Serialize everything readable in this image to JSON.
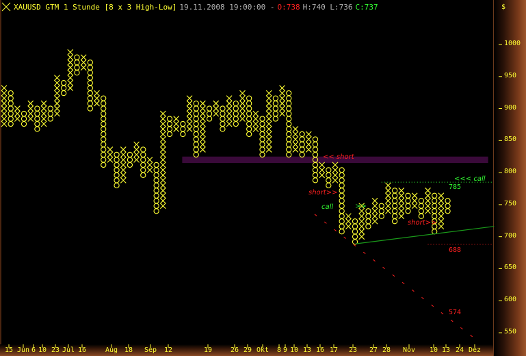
{
  "header": {
    "symbol_title": "XAUUSD GTM 1 Stunde [8 x 3 High-Low]",
    "datetime": "19.11.2008 19:00:00 -",
    "open": "O:738",
    "high_low": "H:740 L:736",
    "close": "C:737",
    "currency": "$",
    "icon": "cross-icon"
  },
  "colors": {
    "boxes": "#ffff33",
    "band": "#3a0a3a",
    "call": "#33ff33",
    "short": "#ff2020",
    "trendline": "#1a9a1a",
    "axis_text": "#ffff33"
  },
  "chart_data": {
    "type": "point-and-figure",
    "box_size": 8,
    "reversal": 3,
    "method": "High-Low",
    "grid": false,
    "ylim": [
      540,
      1010
    ],
    "y_ticks": [
      "1000",
      "950",
      "900",
      "850",
      "800",
      "750",
      "700",
      "650",
      "600",
      "550"
    ],
    "x_ticks": [
      "15",
      "Jun",
      "6",
      "10",
      "23",
      "Jul",
      "16",
      "Aug",
      "18",
      "Sep",
      "12",
      "19",
      "26",
      "29",
      "Okt",
      "8",
      "9",
      "10",
      "13",
      "16",
      "17",
      "23",
      "27",
      "28",
      "Nov",
      "10",
      "13",
      "24",
      "Dez"
    ],
    "columns": [
      {
        "t": "X",
        "low": 876,
        "high": 932
      },
      {
        "t": "O",
        "low": 876,
        "high": 924
      },
      {
        "t": "X",
        "low": 884,
        "high": 900
      },
      {
        "t": "O",
        "low": 876,
        "high": 892
      },
      {
        "t": "X",
        "low": 884,
        "high": 908
      },
      {
        "t": "O",
        "low": 868,
        "high": 900
      },
      {
        "t": "X",
        "low": 876,
        "high": 908
      },
      {
        "t": "O",
        "low": 884,
        "high": 900
      },
      {
        "t": "X",
        "low": 892,
        "high": 948
      },
      {
        "t": "O",
        "low": 924,
        "high": 940
      },
      {
        "t": "X",
        "low": 932,
        "high": 988
      },
      {
        "t": "O",
        "low": 956,
        "high": 980
      },
      {
        "t": "X",
        "low": 964,
        "high": 980
      },
      {
        "t": "O",
        "low": 900,
        "high": 972
      },
      {
        "t": "X",
        "low": 908,
        "high": 924
      },
      {
        "t": "O",
        "low": 812,
        "high": 916
      },
      {
        "t": "X",
        "low": 820,
        "high": 836
      },
      {
        "t": "O",
        "low": 780,
        "high": 828
      },
      {
        "t": "X",
        "low": 788,
        "high": 836
      },
      {
        "t": "O",
        "low": 812,
        "high": 828
      },
      {
        "t": "X",
        "low": 820,
        "high": 844
      },
      {
        "t": "O",
        "low": 796,
        "high": 836
      },
      {
        "t": "X",
        "low": 804,
        "high": 820
      },
      {
        "t": "O",
        "low": 740,
        "high": 812
      },
      {
        "t": "X",
        "low": 748,
        "high": 892
      },
      {
        "t": "O",
        "low": 860,
        "high": 884
      },
      {
        "t": "X",
        "low": 868,
        "high": 884
      },
      {
        "t": "O",
        "low": 860,
        "high": 876
      },
      {
        "t": "X",
        "low": 868,
        "high": 916
      },
      {
        "t": "O",
        "low": 828,
        "high": 908
      },
      {
        "t": "X",
        "low": 836,
        "high": 908
      },
      {
        "t": "O",
        "low": 884,
        "high": 900
      },
      {
        "t": "X",
        "low": 892,
        "high": 908
      },
      {
        "t": "O",
        "low": 868,
        "high": 900
      },
      {
        "t": "X",
        "low": 876,
        "high": 916
      },
      {
        "t": "O",
        "low": 876,
        "high": 908
      },
      {
        "t": "X",
        "low": 884,
        "high": 924
      },
      {
        "t": "O",
        "low": 860,
        "high": 916
      },
      {
        "t": "X",
        "low": 868,
        "high": 892
      },
      {
        "t": "O",
        "low": 828,
        "high": 884
      },
      {
        "t": "X",
        "low": 836,
        "high": 924
      },
      {
        "t": "O",
        "low": 884,
        "high": 916
      },
      {
        "t": "X",
        "low": 892,
        "high": 932
      },
      {
        "t": "O",
        "low": 828,
        "high": 924
      },
      {
        "t": "X",
        "low": 836,
        "high": 868
      },
      {
        "t": "O",
        "low": 828,
        "high": 860
      },
      {
        "t": "X",
        "low": 836,
        "high": 860
      },
      {
        "t": "O",
        "low": 788,
        "high": 852
      },
      {
        "t": "X",
        "low": 796,
        "high": 812
      },
      {
        "t": "O",
        "low": 780,
        "high": 804
      },
      {
        "t": "X",
        "low": 788,
        "high": 812
      },
      {
        "t": "O",
        "low": 708,
        "high": 804
      },
      {
        "t": "X",
        "low": 716,
        "high": 732
      },
      {
        "t": "O",
        "low": 692,
        "high": 724
      },
      {
        "t": "X",
        "low": 700,
        "high": 748
      },
      {
        "t": "O",
        "low": 716,
        "high": 740
      },
      {
        "t": "X",
        "low": 724,
        "high": 756
      },
      {
        "t": "O",
        "low": 732,
        "high": 748
      },
      {
        "t": "X",
        "low": 740,
        "high": 780
      },
      {
        "t": "O",
        "low": 724,
        "high": 772
      },
      {
        "t": "X",
        "low": 732,
        "high": 772
      },
      {
        "t": "O",
        "low": 740,
        "high": 764
      },
      {
        "t": "X",
        "low": 748,
        "high": 764
      },
      {
        "t": "O",
        "low": 732,
        "high": 756
      },
      {
        "t": "X",
        "low": 740,
        "high": 772
      },
      {
        "t": "O",
        "low": 708,
        "high": 764
      },
      {
        "t": "X",
        "low": 716,
        "high": 764
      },
      {
        "t": "O",
        "low": 740,
        "high": 756
      }
    ],
    "overlays": {
      "resistance_band": {
        "col_from": 26.9,
        "col_to": 73.1,
        "price_low": 815,
        "price_high": 825
      },
      "call_level": {
        "col_from": 57,
        "col_to": 73.7,
        "price": 785
      },
      "support_level": {
        "col_from": 64,
        "col_to": 73.7,
        "price": 688
      },
      "uptrend_line": {
        "from": [
          53.2,
          689
        ],
        "to": [
          74,
          716
        ]
      },
      "target_line": {
        "from": [
          46.9,
          735
        ],
        "to": [
          71.2,
          540
        ]
      }
    },
    "annotations": {
      "short_band": "<< short",
      "short_1": "short>>",
      "call_1": "call",
      "call_arrow": ">>",
      "call_level_label": "<<< call",
      "call_level_value": "785",
      "short_2": "short>>",
      "support_value": "688",
      "target_value": "574"
    }
  }
}
